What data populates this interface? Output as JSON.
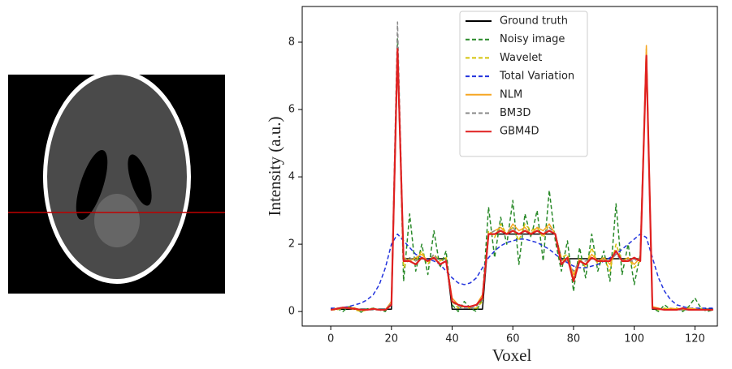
{
  "chart_data": {
    "type": "line",
    "xlabel": "Voxel",
    "ylabel": "Intensity (a.u.)",
    "xlim": [
      -9.4,
      127.4
    ],
    "ylim": [
      -0.43,
      9.06
    ],
    "xticks": [
      0,
      20,
      40,
      60,
      80,
      100,
      120
    ],
    "yticks": [
      0,
      2,
      4,
      6,
      8
    ],
    "legend": "upper center",
    "x": [
      0,
      2,
      4,
      6,
      8,
      10,
      12,
      14,
      16,
      18,
      20,
      22,
      24,
      26,
      28,
      30,
      32,
      34,
      36,
      38,
      40,
      42,
      44,
      46,
      48,
      50,
      52,
      54,
      56,
      58,
      60,
      62,
      64,
      66,
      68,
      70,
      72,
      74,
      76,
      78,
      80,
      82,
      84,
      86,
      88,
      90,
      92,
      94,
      96,
      98,
      100,
      102,
      104,
      106,
      108,
      110,
      112,
      114,
      116,
      118,
      120,
      122,
      124,
      126
    ],
    "series": [
      {
        "name": "Ground truth",
        "color": "#000000",
        "linestyle": "solid",
        "values": [
          0.07,
          0.07,
          0.07,
          0.07,
          0.07,
          0.07,
          0.07,
          0.07,
          0.07,
          0.07,
          0.07,
          7.6,
          1.57,
          1.57,
          1.57,
          1.57,
          1.57,
          1.57,
          1.57,
          1.57,
          0.07,
          0.07,
          0.07,
          0.07,
          0.07,
          0.07,
          2.3,
          2.3,
          2.3,
          2.3,
          2.3,
          2.3,
          2.3,
          2.3,
          2.3,
          2.3,
          2.3,
          2.3,
          1.57,
          1.57,
          1.57,
          1.57,
          1.57,
          1.57,
          1.57,
          1.57,
          1.57,
          1.57,
          1.57,
          1.57,
          1.57,
          1.57,
          7.6,
          0.07,
          0.07,
          0.07,
          0.07,
          0.07,
          0.07,
          0.07,
          0.07,
          0.07,
          0.07,
          0.07
        ]
      },
      {
        "name": "Noisy image",
        "color": "#2a8a2a",
        "linestyle": "dashed",
        "values": [
          0.05,
          0.1,
          0.0,
          0.15,
          0.1,
          -0.02,
          0.08,
          0.1,
          0.05,
          0.0,
          0.3,
          8.1,
          0.9,
          2.9,
          1.2,
          2.0,
          1.1,
          2.4,
          1.3,
          1.8,
          0.2,
          0.0,
          0.3,
          0.1,
          0.0,
          0.4,
          3.1,
          1.6,
          2.8,
          2.0,
          3.3,
          1.4,
          2.9,
          2.2,
          3.0,
          1.5,
          3.6,
          2.1,
          1.2,
          2.1,
          0.6,
          1.9,
          1.0,
          2.3,
          1.2,
          1.8,
          0.9,
          3.2,
          1.1,
          2.0,
          0.8,
          1.7,
          7.7,
          0.1,
          0.0,
          0.2,
          0.05,
          0.1,
          0.0,
          0.15,
          0.4,
          0.1,
          0.0,
          0.05
        ]
      },
      {
        "name": "Wavelet",
        "color": "#d4c20a",
        "linestyle": "dashed",
        "values": [
          0.05,
          0.05,
          0.1,
          0.1,
          0.05,
          0.0,
          0.05,
          0.1,
          0.05,
          0.05,
          0.2,
          7.7,
          1.3,
          1.6,
          1.5,
          1.8,
          1.4,
          1.7,
          1.5,
          1.6,
          0.3,
          0.1,
          0.15,
          0.1,
          0.1,
          0.3,
          2.4,
          2.2,
          2.6,
          2.3,
          2.5,
          2.1,
          2.6,
          2.4,
          2.5,
          2.2,
          2.6,
          2.3,
          1.6,
          1.7,
          1.0,
          1.6,
          1.3,
          1.9,
          1.4,
          1.6,
          1.2,
          2.0,
          1.5,
          1.6,
          1.3,
          1.5,
          7.8,
          0.1,
          0.05,
          0.1,
          0.05,
          0.1,
          0.05,
          0.1,
          0.05,
          0.1,
          0.05,
          0.05
        ]
      },
      {
        "name": "Total Variation",
        "color": "#2233dd",
        "linestyle": "dashed",
        "values": [
          0.1,
          0.1,
          0.12,
          0.15,
          0.2,
          0.25,
          0.35,
          0.5,
          0.8,
          1.3,
          2.0,
          2.3,
          2.1,
          1.9,
          1.7,
          1.6,
          1.55,
          1.5,
          1.4,
          1.2,
          1.0,
          0.85,
          0.8,
          0.85,
          1.0,
          1.3,
          1.6,
          1.8,
          1.95,
          2.05,
          2.1,
          2.15,
          2.15,
          2.1,
          2.05,
          1.95,
          1.85,
          1.7,
          1.55,
          1.45,
          1.35,
          1.3,
          1.3,
          1.35,
          1.4,
          1.5,
          1.6,
          1.7,
          1.85,
          2.0,
          2.15,
          2.3,
          2.2,
          1.6,
          1.0,
          0.6,
          0.35,
          0.2,
          0.15,
          0.1,
          0.1,
          0.1,
          0.1,
          0.1
        ]
      },
      {
        "name": "NLM",
        "color": "#f5a623",
        "linestyle": "solid",
        "values": [
          0.05,
          0.1,
          0.1,
          0.12,
          0.1,
          0.05,
          0.05,
          0.08,
          0.05,
          0.05,
          0.3,
          7.7,
          1.6,
          1.5,
          1.6,
          1.7,
          1.5,
          1.6,
          1.4,
          1.5,
          0.4,
          0.2,
          0.15,
          0.15,
          0.2,
          0.5,
          2.3,
          2.4,
          2.5,
          2.3,
          2.6,
          2.4,
          2.5,
          2.3,
          2.5,
          2.4,
          2.6,
          2.3,
          1.5,
          1.6,
          1.1,
          1.5,
          1.4,
          1.7,
          1.5,
          1.6,
          1.4,
          1.8,
          1.5,
          1.6,
          1.4,
          1.6,
          7.9,
          0.15,
          0.1,
          0.05,
          0.1,
          0.08,
          0.05,
          0.1,
          0.08,
          0.05,
          0.05,
          0.05
        ]
      },
      {
        "name": "BM3D",
        "color": "#888888",
        "linestyle": "dashed",
        "values": [
          0.05,
          0.08,
          0.1,
          0.1,
          0.08,
          0.05,
          0.05,
          0.05,
          0.05,
          0.05,
          0.25,
          8.6,
          1.5,
          1.6,
          1.5,
          1.6,
          1.5,
          1.7,
          1.4,
          1.5,
          0.3,
          0.15,
          0.1,
          0.1,
          0.15,
          0.4,
          2.3,
          2.4,
          2.4,
          2.3,
          2.5,
          2.3,
          2.4,
          2.3,
          2.4,
          2.3,
          2.5,
          2.3,
          1.5,
          1.5,
          1.2,
          1.5,
          1.5,
          1.6,
          1.5,
          1.5,
          1.5,
          1.7,
          1.5,
          1.5,
          1.5,
          1.6,
          7.5,
          0.1,
          0.08,
          0.05,
          0.05,
          0.05,
          0.05,
          0.05,
          0.05,
          0.05,
          0.05,
          0.05
        ]
      },
      {
        "name": "GBM4D",
        "color": "#e02020",
        "linestyle": "solid",
        "values": [
          0.05,
          0.08,
          0.12,
          0.1,
          0.08,
          0.05,
          0.05,
          0.08,
          0.05,
          0.05,
          0.2,
          7.8,
          1.5,
          1.5,
          1.4,
          1.6,
          1.5,
          1.6,
          1.4,
          1.5,
          0.3,
          0.2,
          0.15,
          0.15,
          0.2,
          0.4,
          2.3,
          2.3,
          2.4,
          2.3,
          2.4,
          2.3,
          2.4,
          2.3,
          2.4,
          2.3,
          2.4,
          2.3,
          1.4,
          1.6,
          0.9,
          1.5,
          1.4,
          1.6,
          1.5,
          1.5,
          1.5,
          1.8,
          1.5,
          1.5,
          1.6,
          1.5,
          7.6,
          0.1,
          0.08,
          0.05,
          0.05,
          0.05,
          0.1,
          0.05,
          0.05,
          0.05,
          0.05,
          0.05
        ]
      }
    ]
  }
}
